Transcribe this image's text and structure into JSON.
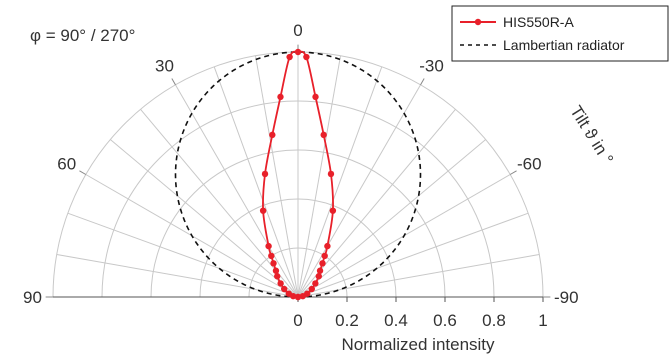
{
  "chart_data": {
    "type": "polar-half",
    "phi_label": "φ = 90° / 270°",
    "angle_axis_label": "Tilt ϑ in °",
    "radial_axis_label": "Normalized intensity",
    "radial_range": [
      0,
      1
    ],
    "radial_ticks": [
      "0",
      "0.2",
      "0.4",
      "0.6",
      "0.8",
      "1"
    ],
    "angle_ticks": [
      {
        "angle": 0,
        "label": "0"
      },
      {
        "angle": 30,
        "label": "30"
      },
      {
        "angle": 60,
        "label": "60"
      },
      {
        "angle": 90,
        "label": "90"
      },
      {
        "angle": -30,
        "label": "-30"
      },
      {
        "angle": -60,
        "label": "-60"
      },
      {
        "angle": -90,
        "label": "-90"
      }
    ],
    "angle_gridline_step": 10,
    "legend_position": "top-right",
    "series": [
      {
        "name": "HIS550R-A",
        "color": "#e8202a",
        "style": "solid-with-markers",
        "points": [
          {
            "angle": 0,
            "value": 1.0
          },
          {
            "angle": 2,
            "value": 0.98
          },
          {
            "angle": 5,
            "value": 0.82
          },
          {
            "angle": 9,
            "value": 0.67
          },
          {
            "angle": 15,
            "value": 0.52
          },
          {
            "angle": 22,
            "value": 0.38
          },
          {
            "angle": 30,
            "value": 0.24
          },
          {
            "angle": 33,
            "value": 0.2
          },
          {
            "angle": 36,
            "value": 0.17
          },
          {
            "angle": 40,
            "value": 0.14
          },
          {
            "angle": 45,
            "value": 0.12
          },
          {
            "angle": 52,
            "value": 0.09
          },
          {
            "angle": 60,
            "value": 0.065
          },
          {
            "angle": 70,
            "value": 0.04
          },
          {
            "angle": 80,
            "value": 0.02
          },
          {
            "angle": 90,
            "value": 0.0
          },
          {
            "angle": -2,
            "value": 0.98
          },
          {
            "angle": -5,
            "value": 0.82
          },
          {
            "angle": -9,
            "value": 0.67
          },
          {
            "angle": -15,
            "value": 0.52
          },
          {
            "angle": -22,
            "value": 0.38
          },
          {
            "angle": -30,
            "value": 0.24
          },
          {
            "angle": -33,
            "value": 0.2
          },
          {
            "angle": -36,
            "value": 0.17
          },
          {
            "angle": -40,
            "value": 0.14
          },
          {
            "angle": -45,
            "value": 0.12
          },
          {
            "angle": -52,
            "value": 0.09
          },
          {
            "angle": -60,
            "value": 0.065
          },
          {
            "angle": -70,
            "value": 0.04
          },
          {
            "angle": -80,
            "value": 0.02
          },
          {
            "angle": -90,
            "value": 0.0
          }
        ]
      },
      {
        "name": "Lambertian radiator",
        "color": "#111111",
        "style": "dashed",
        "formula": "cos(angle)"
      }
    ]
  }
}
